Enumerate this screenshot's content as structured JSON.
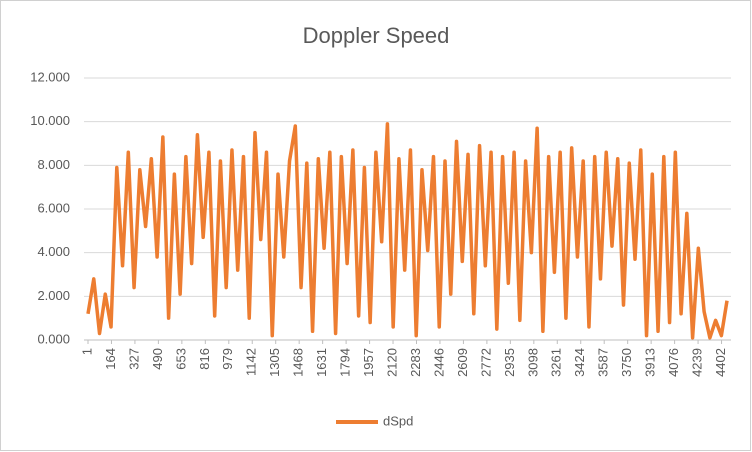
{
  "chart_data": {
    "type": "line",
    "title": "Doppler Speed",
    "x": [
      1,
      41,
      81,
      121,
      161,
      201,
      241,
      281,
      321,
      361,
      401,
      441,
      481,
      521,
      561,
      601,
      641,
      681,
      721,
      761,
      801,
      841,
      881,
      921,
      961,
      1001,
      1041,
      1081,
      1121,
      1161,
      1201,
      1241,
      1281,
      1321,
      1361,
      1401,
      1441,
      1481,
      1521,
      1561,
      1601,
      1641,
      1681,
      1721,
      1761,
      1801,
      1841,
      1881,
      1921,
      1961,
      2001,
      2041,
      2081,
      2121,
      2161,
      2201,
      2241,
      2281,
      2321,
      2361,
      2401,
      2441,
      2481,
      2521,
      2561,
      2601,
      2641,
      2681,
      2721,
      2761,
      2801,
      2841,
      2881,
      2921,
      2961,
      3001,
      3041,
      3081,
      3121,
      3161,
      3201,
      3241,
      3281,
      3321,
      3361,
      3401,
      3441,
      3481,
      3521,
      3561,
      3601,
      3641,
      3681,
      3721,
      3761,
      3801,
      3841,
      3881,
      3921,
      3961,
      4001,
      4041,
      4081,
      4121,
      4161,
      4201,
      4241,
      4281,
      4321,
      4361,
      4401,
      4440
    ],
    "series": [
      {
        "name": "dSpd",
        "color": "#ed7d31",
        "values": [
          1.2,
          2.8,
          0.3,
          2.1,
          0.6,
          7.9,
          3.4,
          8.6,
          2.4,
          7.8,
          5.2,
          8.3,
          3.8,
          9.3,
          1.0,
          7.6,
          2.1,
          8.4,
          3.5,
          9.4,
          4.7,
          8.6,
          1.1,
          8.2,
          2.4,
          8.7,
          3.2,
          8.4,
          1.0,
          9.5,
          4.6,
          8.6,
          0.2,
          7.6,
          3.8,
          8.2,
          9.8,
          2.4,
          8.1,
          0.4,
          8.3,
          4.2,
          8.6,
          0.3,
          8.4,
          3.5,
          8.7,
          1.1,
          7.9,
          0.8,
          8.6,
          4.5,
          9.9,
          0.6,
          8.3,
          3.2,
          8.7,
          0.2,
          7.8,
          4.1,
          8.4,
          0.6,
          8.2,
          2.1,
          9.1,
          3.6,
          8.5,
          1.2,
          8.9,
          3.4,
          8.6,
          0.5,
          8.4,
          2.6,
          8.6,
          0.9,
          8.2,
          4.0,
          9.7,
          0.4,
          8.4,
          3.1,
          8.6,
          1.0,
          8.8,
          3.8,
          8.2,
          0.6,
          8.4,
          2.8,
          8.6,
          4.3,
          8.3,
          1.6,
          8.1,
          3.7,
          8.7,
          0.2,
          7.6,
          0.4,
          8.4,
          0.8,
          8.6,
          1.2,
          5.8,
          0.1,
          4.2,
          1.3,
          0.1,
          0.9,
          0.2,
          1.8
        ]
      }
    ],
    "xlim": [
      1,
      4440
    ],
    "xticks": [
      1,
      164,
      327,
      490,
      653,
      816,
      979,
      1142,
      1305,
      1468,
      1631,
      1794,
      1957,
      2120,
      2283,
      2446,
      2609,
      2772,
      2935,
      3098,
      3261,
      3424,
      3587,
      3750,
      3913,
      4076,
      4239,
      4402
    ],
    "ylim": [
      0,
      12
    ],
    "yticks": [
      {
        "value": 0,
        "label": "0.000"
      },
      {
        "value": 2,
        "label": "2.000"
      },
      {
        "value": 4,
        "label": "4.000"
      },
      {
        "value": 6,
        "label": "6.000"
      },
      {
        "value": 8,
        "label": "8.000"
      },
      {
        "value": 10,
        "label": "10.000"
      },
      {
        "value": 12,
        "label": "12.000"
      }
    ],
    "grid": true
  }
}
